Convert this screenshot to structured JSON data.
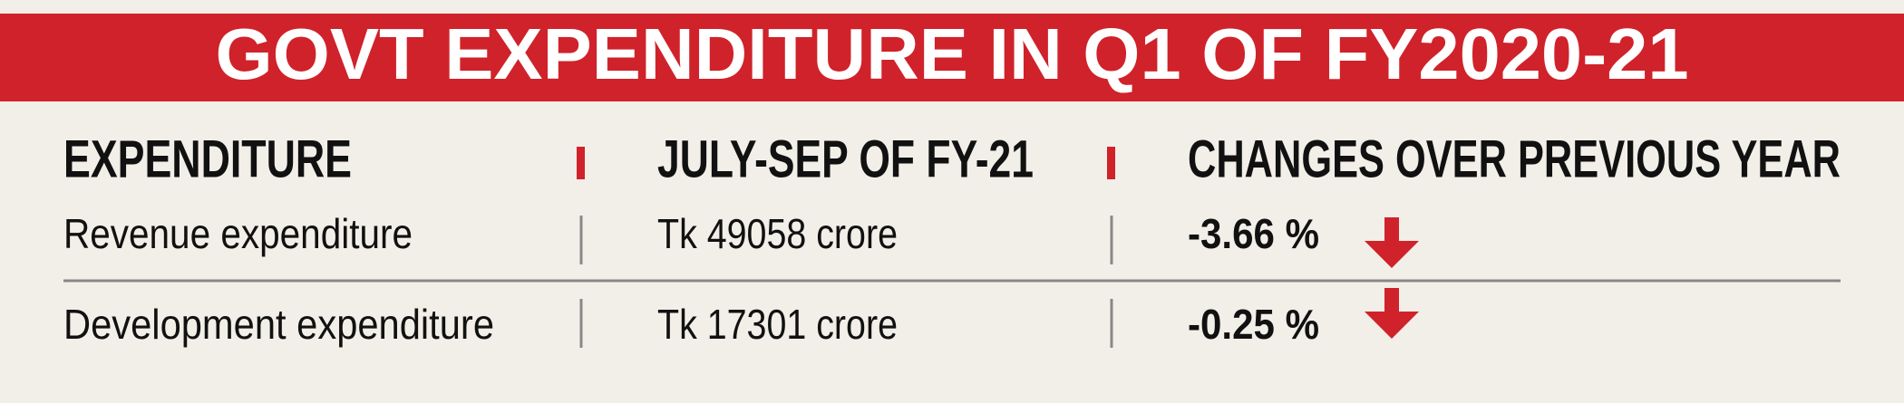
{
  "header": {
    "title": "GOVT EXPENDITURE IN Q1 OF FY2020-21"
  },
  "table": {
    "columns": [
      "EXPENDITURE",
      "JULY-SEP OF FY-21",
      "CHANGES OVER PREVIOUS YEAR"
    ],
    "rows": [
      [
        "Revenue expenditure",
        "Tk 49058 crore",
        "-3.66 %"
      ],
      [
        "Development expenditure",
        "Tk 17301 crore",
        "-0.25 %"
      ]
    ]
  }
}
